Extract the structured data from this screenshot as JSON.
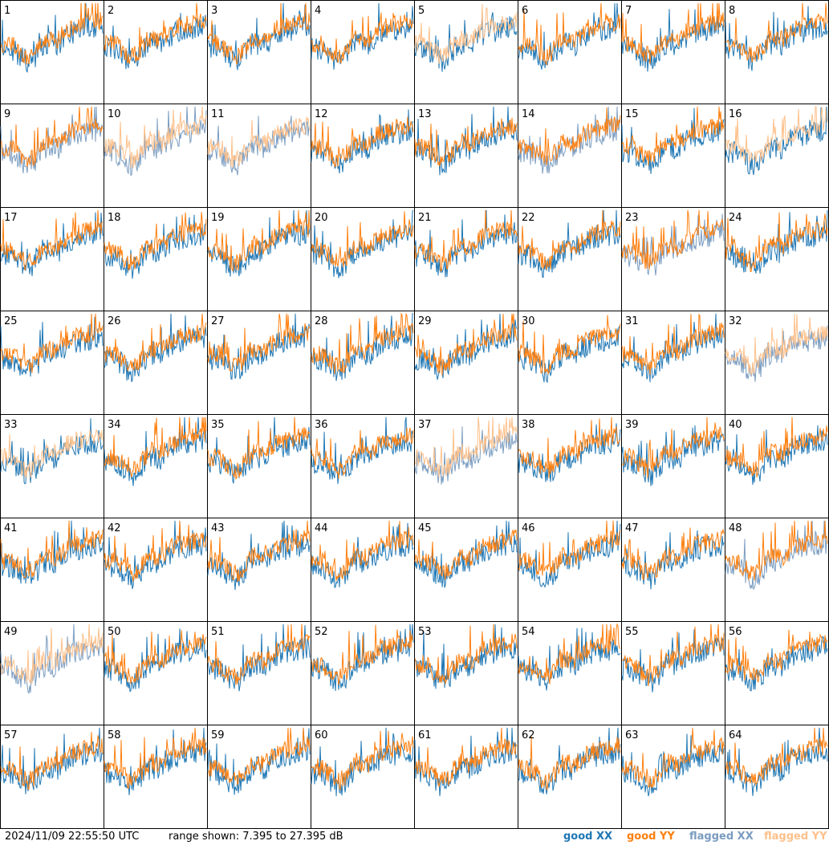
{
  "chart_data": {
    "type": "line",
    "layout": "8x8 grid of small-multiple spectra, one per antenna",
    "panels": [
      {
        "label": "1",
        "xx": "good",
        "yy": "good"
      },
      {
        "label": "2",
        "xx": "good",
        "yy": "good"
      },
      {
        "label": "3",
        "xx": "good",
        "yy": "good"
      },
      {
        "label": "4",
        "xx": "good",
        "yy": "good"
      },
      {
        "label": "5",
        "xx": "good",
        "yy": "flagged"
      },
      {
        "label": "6",
        "xx": "good",
        "yy": "good"
      },
      {
        "label": "7",
        "xx": "good",
        "yy": "good"
      },
      {
        "label": "8",
        "xx": "good",
        "yy": "good"
      },
      {
        "label": "9",
        "xx": "flagged",
        "yy": "good"
      },
      {
        "label": "10",
        "xx": "flagged",
        "yy": "flagged"
      },
      {
        "label": "11",
        "xx": "flagged",
        "yy": "flagged"
      },
      {
        "label": "12",
        "xx": "good",
        "yy": "good"
      },
      {
        "label": "13",
        "xx": "good",
        "yy": "good"
      },
      {
        "label": "14",
        "xx": "flagged",
        "yy": "good"
      },
      {
        "label": "15",
        "xx": "good",
        "yy": "good"
      },
      {
        "label": "16",
        "xx": "good",
        "yy": "flagged"
      },
      {
        "label": "17",
        "xx": "good",
        "yy": "good"
      },
      {
        "label": "18",
        "xx": "good",
        "yy": "good"
      },
      {
        "label": "19",
        "xx": "good",
        "yy": "good"
      },
      {
        "label": "20",
        "xx": "good",
        "yy": "good"
      },
      {
        "label": "21",
        "xx": "good",
        "yy": "good"
      },
      {
        "label": "22",
        "xx": "good",
        "yy": "good"
      },
      {
        "label": "23",
        "xx": "flagged",
        "yy": "good"
      },
      {
        "label": "24",
        "xx": "good",
        "yy": "good"
      },
      {
        "label": "25",
        "xx": "good",
        "yy": "good"
      },
      {
        "label": "26",
        "xx": "good",
        "yy": "good"
      },
      {
        "label": "27",
        "xx": "good",
        "yy": "good"
      },
      {
        "label": "28",
        "xx": "good",
        "yy": "good"
      },
      {
        "label": "29",
        "xx": "good",
        "yy": "good"
      },
      {
        "label": "30",
        "xx": "good",
        "yy": "good"
      },
      {
        "label": "31",
        "xx": "good",
        "yy": "good"
      },
      {
        "label": "32",
        "xx": "flagged",
        "yy": "flagged"
      },
      {
        "label": "33",
        "xx": "good",
        "yy": "flagged"
      },
      {
        "label": "34",
        "xx": "good",
        "yy": "good"
      },
      {
        "label": "35",
        "xx": "good",
        "yy": "good"
      },
      {
        "label": "36",
        "xx": "good",
        "yy": "good"
      },
      {
        "label": "37",
        "xx": "flagged",
        "yy": "flagged"
      },
      {
        "label": "38",
        "xx": "good",
        "yy": "good"
      },
      {
        "label": "39",
        "xx": "good",
        "yy": "good"
      },
      {
        "label": "40",
        "xx": "good",
        "yy": "good"
      },
      {
        "label": "41",
        "xx": "good",
        "yy": "good"
      },
      {
        "label": "42",
        "xx": "good",
        "yy": "good"
      },
      {
        "label": "43",
        "xx": "good",
        "yy": "good"
      },
      {
        "label": "44",
        "xx": "good",
        "yy": "good"
      },
      {
        "label": "45",
        "xx": "good",
        "yy": "good"
      },
      {
        "label": "46",
        "xx": "good",
        "yy": "good"
      },
      {
        "label": "47",
        "xx": "good",
        "yy": "good"
      },
      {
        "label": "48",
        "xx": "flagged",
        "yy": "good"
      },
      {
        "label": "49",
        "xx": "flagged",
        "yy": "flagged"
      },
      {
        "label": "50",
        "xx": "good",
        "yy": "good"
      },
      {
        "label": "51",
        "xx": "good",
        "yy": "good"
      },
      {
        "label": "52",
        "xx": "good",
        "yy": "good"
      },
      {
        "label": "53",
        "xx": "good",
        "yy": "good"
      },
      {
        "label": "54",
        "xx": "good",
        "yy": "good"
      },
      {
        "label": "55",
        "xx": "good",
        "yy": "good"
      },
      {
        "label": "56",
        "xx": "good",
        "yy": "good"
      },
      {
        "label": "57",
        "xx": "good",
        "yy": "good"
      },
      {
        "label": "58",
        "xx": "good",
        "yy": "good"
      },
      {
        "label": "59",
        "xx": "good",
        "yy": "good"
      },
      {
        "label": "60",
        "xx": "good",
        "yy": "good"
      },
      {
        "label": "61",
        "xx": "good",
        "yy": "good"
      },
      {
        "label": "62",
        "xx": "good",
        "yy": "good"
      },
      {
        "label": "63",
        "xx": "good",
        "yy": "good"
      },
      {
        "label": "64",
        "xx": "good",
        "yy": "good"
      }
    ],
    "y_range_db": [
      7.395,
      27.395
    ],
    "grid": false,
    "legend_placement": "bottom-right"
  },
  "footer": {
    "timestamp": "2024/11/09 22:55:50 UTC",
    "range_text": "range shown: 7.395 to 27.395 dB"
  },
  "legend": {
    "good_xx": "good XX",
    "good_yy": "good YY",
    "flagged_xx": "flagged XX",
    "flagged_yy": "flagged YY"
  },
  "colors": {
    "good_xx": "#1f77b4",
    "good_yy": "#ff7f0e",
    "flagged_xx": "#7a9cc0",
    "flagged_yy": "#fdc08a"
  }
}
